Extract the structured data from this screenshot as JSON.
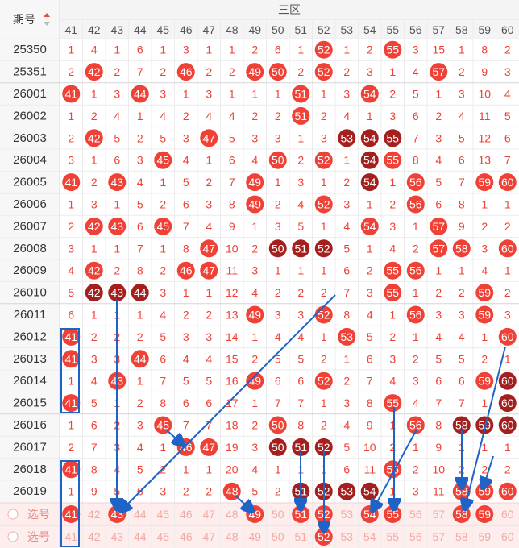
{
  "header": {
    "period_label": "期号",
    "zone_label": "三区",
    "columns": [
      41,
      42,
      43,
      44,
      45,
      46,
      47,
      48,
      49,
      50,
      51,
      52,
      53,
      54,
      55,
      56,
      57,
      58,
      59,
      60
    ]
  },
  "rows": [
    {
      "period": "25350",
      "cells": [
        1,
        4,
        1,
        6,
        1,
        3,
        1,
        1,
        2,
        6,
        1,
        52,
        1,
        2,
        55,
        3,
        15,
        1,
        8,
        2
      ],
      "dark": []
    },
    {
      "period": "25351",
      "cells": [
        2,
        42,
        2,
        7,
        2,
        46,
        2,
        2,
        49,
        50,
        2,
        52,
        2,
        3,
        1,
        4,
        57,
        2,
        9,
        3
      ],
      "dark": []
    },
    {
      "period": "26001",
      "cells": [
        41,
        1,
        3,
        44,
        3,
        1,
        3,
        1,
        1,
        1,
        51,
        1,
        3,
        54,
        2,
        5,
        1,
        3,
        10,
        4
      ],
      "dark": []
    },
    {
      "period": "26002",
      "cells": [
        1,
        2,
        4,
        1,
        4,
        2,
        4,
        4,
        2,
        2,
        51,
        2,
        4,
        1,
        3,
        6,
        2,
        4,
        11,
        5
      ],
      "dark": []
    },
    {
      "period": "26003",
      "cells": [
        2,
        42,
        5,
        2,
        5,
        3,
        47,
        5,
        3,
        3,
        1,
        3,
        53,
        54,
        55,
        7,
        3,
        5,
        12,
        6
      ],
      "dark": [
        53,
        54,
        55
      ]
    },
    {
      "period": "26004",
      "cells": [
        3,
        1,
        6,
        3,
        45,
        4,
        1,
        6,
        4,
        50,
        2,
        52,
        1,
        54,
        55,
        8,
        4,
        6,
        13,
        7
      ],
      "dark": [
        54
      ]
    },
    {
      "period": "26005",
      "cells": [
        41,
        2,
        43,
        4,
        1,
        5,
        2,
        7,
        49,
        1,
        3,
        1,
        2,
        54,
        1,
        56,
        5,
        7,
        59,
        60
      ],
      "dark": [
        54
      ]
    },
    {
      "period": "26006",
      "cells": [
        1,
        3,
        1,
        5,
        2,
        6,
        3,
        8,
        49,
        2,
        4,
        52,
        3,
        1,
        2,
        56,
        6,
        8,
        1,
        1
      ],
      "dark": []
    },
    {
      "period": "26007",
      "cells": [
        2,
        42,
        43,
        6,
        45,
        7,
        4,
        9,
        1,
        3,
        5,
        1,
        4,
        54,
        3,
        1,
        57,
        9,
        2,
        2
      ],
      "dark": []
    },
    {
      "period": "26008",
      "cells": [
        3,
        1,
        1,
        7,
        1,
        8,
        47,
        10,
        2,
        50,
        51,
        52,
        5,
        1,
        4,
        2,
        57,
        58,
        3,
        60
      ],
      "dark": [
        50,
        51,
        52
      ]
    },
    {
      "period": "26009",
      "cells": [
        4,
        42,
        2,
        8,
        2,
        46,
        47,
        11,
        3,
        1,
        1,
        1,
        6,
        2,
        55,
        56,
        1,
        1,
        4,
        1
      ],
      "dark": []
    },
    {
      "period": "26010",
      "cells": [
        5,
        42,
        43,
        44,
        3,
        1,
        1,
        12,
        4,
        2,
        2,
        2,
        7,
        3,
        55,
        1,
        2,
        2,
        59,
        2
      ],
      "dark": [
        42,
        43,
        44
      ]
    },
    {
      "period": "26011",
      "cells": [
        6,
        1,
        1,
        1,
        4,
        2,
        2,
        13,
        49,
        3,
        3,
        52,
        8,
        4,
        1,
        56,
        3,
        3,
        59,
        3
      ],
      "dark": []
    },
    {
      "period": "26012",
      "cells": [
        41,
        2,
        2,
        2,
        5,
        3,
        3,
        14,
        1,
        4,
        4,
        1,
        53,
        5,
        2,
        1,
        4,
        4,
        1,
        60
      ],
      "dark": []
    },
    {
      "period": "26013",
      "cells": [
        41,
        3,
        3,
        44,
        6,
        4,
        4,
        15,
        2,
        5,
        5,
        2,
        1,
        6,
        3,
        2,
        5,
        5,
        2,
        1
      ],
      "dark": []
    },
    {
      "period": "26014",
      "cells": [
        1,
        4,
        43,
        1,
        7,
        5,
        5,
        16,
        49,
        6,
        6,
        52,
        2,
        7,
        4,
        3,
        6,
        6,
        59,
        60
      ],
      "dark": [
        60
      ]
    },
    {
      "period": "26015",
      "cells": [
        41,
        5,
        1,
        2,
        8,
        6,
        6,
        17,
        1,
        7,
        7,
        1,
        3,
        8,
        55,
        4,
        7,
        7,
        1,
        60
      ],
      "dark": [
        60
      ]
    },
    {
      "period": "26016",
      "cells": [
        1,
        6,
        2,
        3,
        45,
        7,
        7,
        18,
        2,
        50,
        8,
        2,
        4,
        9,
        1,
        56,
        8,
        58,
        59,
        60
      ],
      "dark": [
        58,
        59,
        60
      ]
    },
    {
      "period": "26017",
      "cells": [
        2,
        7,
        3,
        4,
        1,
        46,
        47,
        19,
        3,
        50,
        51,
        52,
        5,
        10,
        2,
        1,
        9,
        1,
        1,
        1
      ],
      "dark": [
        50,
        51,
        52
      ]
    },
    {
      "period": "26018",
      "cells": [
        41,
        8,
        4,
        5,
        2,
        1,
        1,
        20,
        4,
        1,
        1,
        1,
        6,
        11,
        55,
        2,
        10,
        2,
        2,
        2
      ],
      "dark": []
    },
    {
      "period": "26019",
      "cells": [
        1,
        9,
        5,
        6,
        3,
        2,
        2,
        48,
        5,
        2,
        51,
        52,
        53,
        54,
        1,
        3,
        11,
        58,
        59,
        60
      ],
      "dark": [
        51,
        52,
        53,
        54
      ]
    }
  ],
  "picks": [
    {
      "label": "选号",
      "numbers": [
        41,
        42,
        43,
        44,
        45,
        46,
        47,
        48,
        49,
        50,
        51,
        52,
        53,
        54,
        55,
        56,
        57,
        58,
        59,
        60
      ],
      "selected": [
        41,
        43,
        49,
        51,
        52,
        54,
        55,
        58,
        59
      ]
    },
    {
      "label": "选号",
      "numbers": [
        41,
        42,
        43,
        44,
        45,
        46,
        47,
        48,
        49,
        50,
        51,
        52,
        53,
        54,
        55,
        56,
        57,
        58,
        59,
        60
      ],
      "selected": [
        52
      ]
    }
  ]
}
